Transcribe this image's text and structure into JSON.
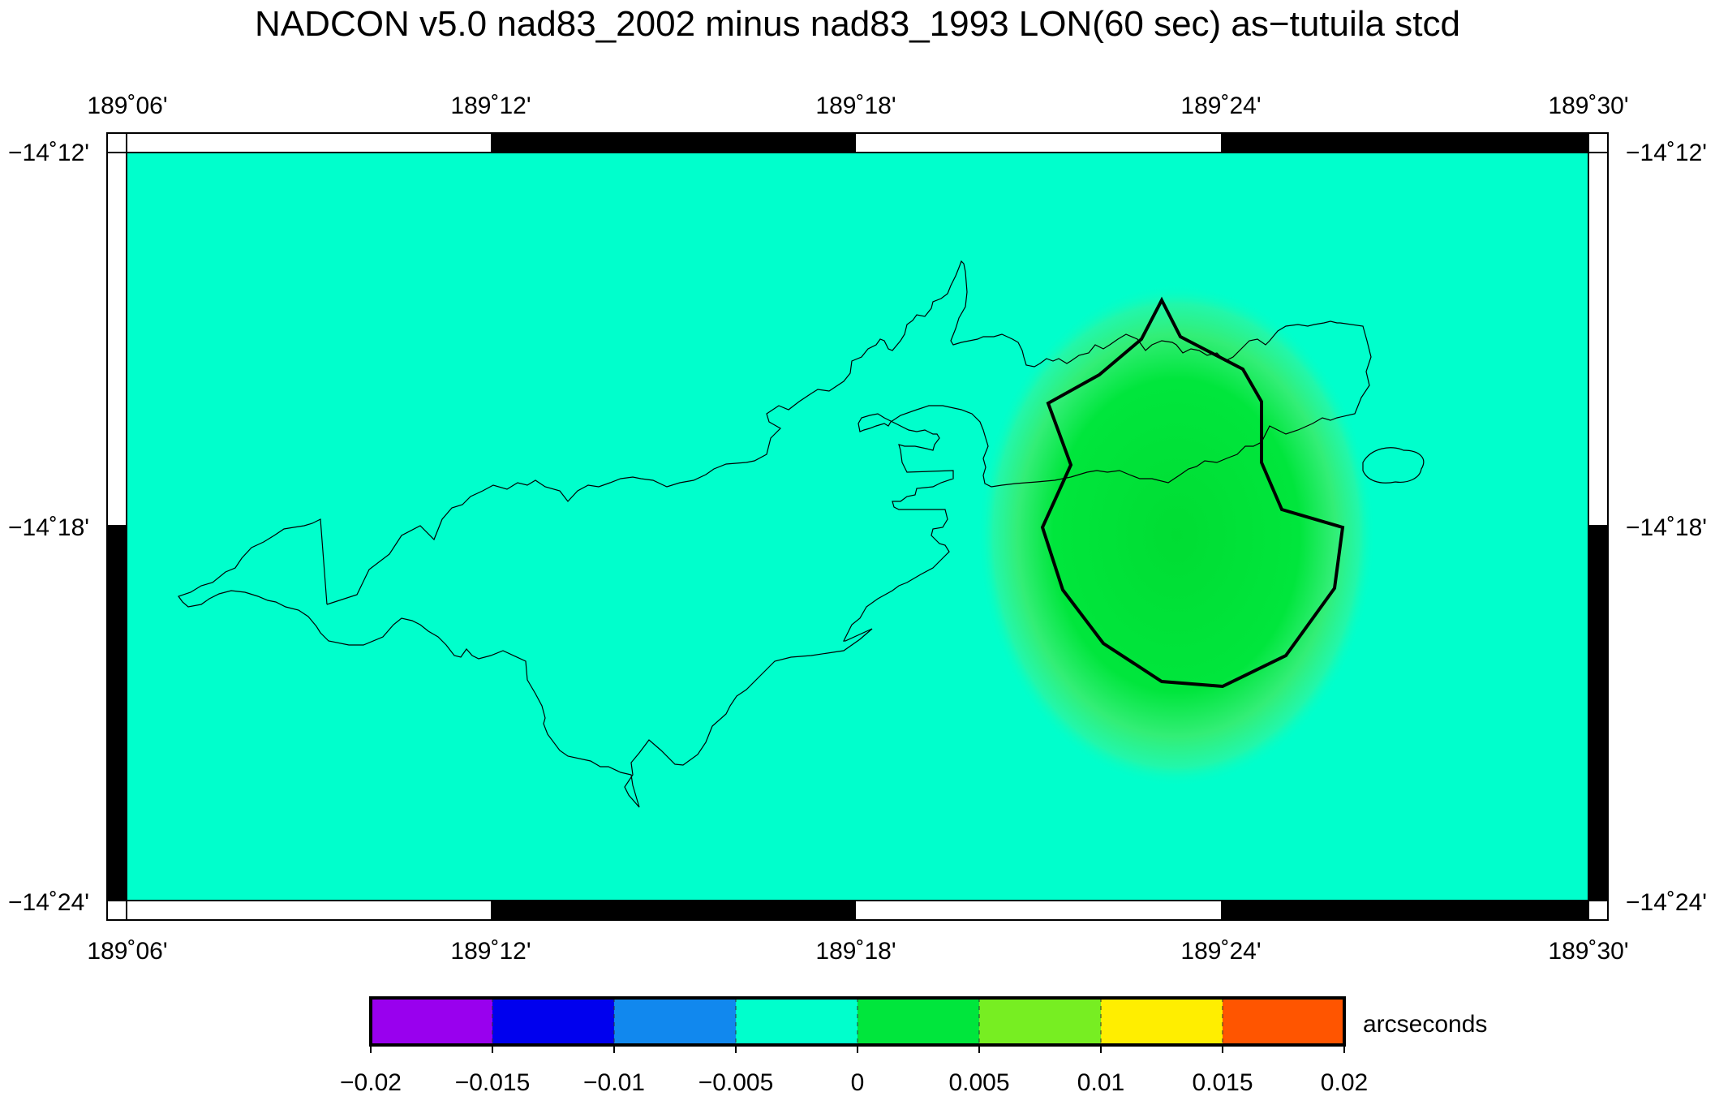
{
  "title": "NADCON v5.0 nad83_2002 minus nad83_1993 LON(60 sec) as−tutuila stcd",
  "map": {
    "lon_range": [
      189.1,
      189.5
    ],
    "lat_range": [
      -14.4,
      -14.2
    ],
    "background_color": "#00ffcc",
    "anomaly_color": "#00e63c",
    "coastline_color": "#000000",
    "x_ticks": [
      "189˚06'",
      "189˚12'",
      "189˚18'",
      "189˚24'",
      "189˚30'"
    ],
    "y_ticks": [
      "−14˚12'",
      "−14˚18'",
      "−14˚24'"
    ]
  },
  "colorbar": {
    "unit": "arcseconds",
    "ticks": [
      "−0.02",
      "−0.015",
      "−0.01",
      "−0.005",
      "0",
      "0.005",
      "0.01",
      "0.015",
      "0.02"
    ],
    "colors": [
      "#9900ee",
      "#0000ee",
      "#1188ee",
      "#00ffcc",
      "#00e63c",
      "#77ee22",
      "#ffee00",
      "#ff5500"
    ]
  }
}
